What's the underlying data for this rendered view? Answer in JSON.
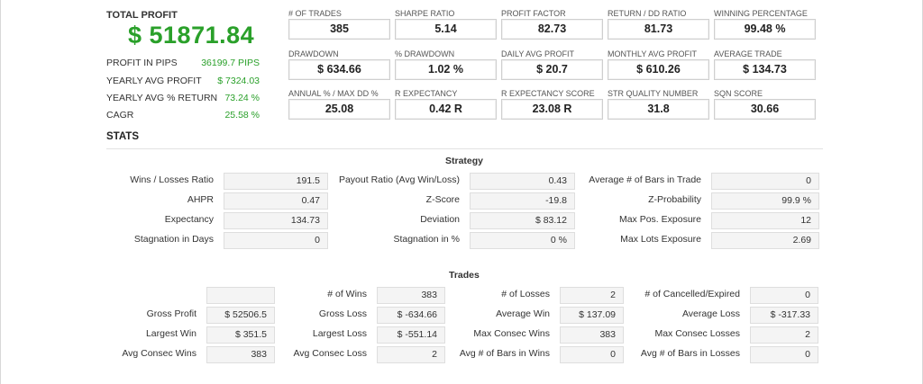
{
  "total_profit": {
    "label": "TOTAL PROFIT",
    "value": "$ 51871.84"
  },
  "left_stats": [
    {
      "label": "PROFIT IN PIPS",
      "value": "36199.7 PIPS"
    },
    {
      "label": "YEARLY AVG PROFIT",
      "value": "$ 7324.03"
    },
    {
      "label": "YEARLY AVG % RETURN",
      "value": "73.24 %"
    },
    {
      "label": "CAGR",
      "value": "25.58 %"
    }
  ],
  "metrics": [
    {
      "label": "# OF TRADES",
      "value": "385"
    },
    {
      "label": "SHARPE RATIO",
      "value": "5.14"
    },
    {
      "label": "PROFIT FACTOR",
      "value": "82.73"
    },
    {
      "label": "RETURN / DD RATIO",
      "value": "81.73"
    },
    {
      "label": "WINNING PERCENTAGE",
      "value": "99.48 %"
    },
    {
      "label": "DRAWDOWN",
      "value": "$ 634.66"
    },
    {
      "label": "% DRAWDOWN",
      "value": "1.02 %"
    },
    {
      "label": "DAILY AVG PROFIT",
      "value": "$ 20.7"
    },
    {
      "label": "MONTHLY AVG PROFIT",
      "value": "$ 610.26"
    },
    {
      "label": "AVERAGE TRADE",
      "value": "$ 134.73"
    },
    {
      "label": "ANNUAL % / MAX DD %",
      "value": "25.08"
    },
    {
      "label": "R EXPECTANCY",
      "value": "0.42 R"
    },
    {
      "label": "R EXPECTANCY SCORE",
      "value": "23.08 R"
    },
    {
      "label": "STR QUALITY NUMBER",
      "value": "31.8"
    },
    {
      "label": "SQN SCORE",
      "value": "30.66"
    }
  ],
  "stats_heading": "STATS",
  "strategy": {
    "title": "Strategy",
    "rows": [
      [
        {
          "label": "Wins / Losses Ratio",
          "value": "191.5"
        },
        {
          "label": "Payout Ratio (Avg Win/Loss)",
          "value": "0.43"
        },
        {
          "label": "Average # of Bars in Trade",
          "value": "0"
        }
      ],
      [
        {
          "label": "AHPR",
          "value": "0.47"
        },
        {
          "label": "Z-Score",
          "value": "-19.8"
        },
        {
          "label": "Z-Probability",
          "value": "99.9 %"
        }
      ],
      [
        {
          "label": "Expectancy",
          "value": "134.73"
        },
        {
          "label": "Deviation",
          "value": "$ 83.12"
        },
        {
          "label": "Max Pos. Exposure",
          "value": "12"
        }
      ],
      [
        {
          "label": "Stagnation in Days",
          "value": "0"
        },
        {
          "label": "Stagnation in %",
          "value": "0 %"
        },
        {
          "label": "Max Lots Exposure",
          "value": "2.69"
        }
      ]
    ]
  },
  "trades": {
    "title": "Trades",
    "rows": [
      [
        {
          "label": "",
          "value": ""
        },
        {
          "label": "# of Wins",
          "value": "383"
        },
        {
          "label": "# of Losses",
          "value": "2"
        },
        {
          "label": "# of Cancelled/Expired",
          "value": "0"
        }
      ],
      [
        {
          "label": "Gross Profit",
          "value": "$ 52506.5"
        },
        {
          "label": "Gross Loss",
          "value": "$ -634.66"
        },
        {
          "label": "Average Win",
          "value": "$ 137.09"
        },
        {
          "label": "Average Loss",
          "value": "$ -317.33"
        }
      ],
      [
        {
          "label": "Largest Win",
          "value": "$ 351.5"
        },
        {
          "label": "Largest Loss",
          "value": "$ -551.14"
        },
        {
          "label": "Max Consec Wins",
          "value": "383"
        },
        {
          "label": "Max Consec Losses",
          "value": "2"
        }
      ],
      [
        {
          "label": "Avg Consec Wins",
          "value": "383"
        },
        {
          "label": "Avg Consec Loss",
          "value": "2"
        },
        {
          "label": "Avg # of Bars in Wins",
          "value": "0"
        },
        {
          "label": "Avg # of Bars in Losses",
          "value": "0"
        }
      ]
    ]
  },
  "colors": {
    "profit_green": "#2aa02a"
  }
}
